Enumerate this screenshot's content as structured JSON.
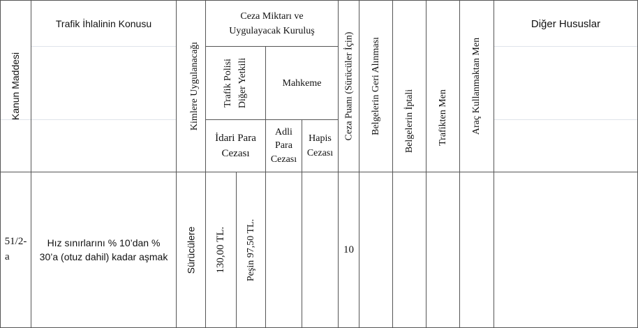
{
  "table": {
    "headers": {
      "kanun_maddesi": "Kanun Maddesi",
      "trafik_ihlali": "Trafik İhlalinin Konusu",
      "kimlere": "Kimlere Uygulanacağı",
      "ceza_miktari_line1": "Ceza Miktarı ve",
      "ceza_miktari_line2": "Uygulayacak Kuruluş",
      "trafik_polisi_line1": "Trafik Polisi",
      "trafik_polisi_line2": "Diğer Yetkili",
      "mahkeme": "Mahkeme",
      "idari_para_line1": "İdari Para",
      "idari_para_line2": "Cezası",
      "adli_para_line1": "Adli",
      "adli_para_line2": "Para",
      "adli_para_line3": "Cezası",
      "hapis_line1": "Hapis",
      "hapis_line2": "Cezası",
      "ceza_puani": "Ceza Puanı (Sürücüler İçin)",
      "belge_geri": "Belgelerin Geri Alınması",
      "belge_iptal": "Belgelerin İptali",
      "trafikten_men": "Trafikten Men",
      "arac_kullanma_men": "Araç Kullanmaktan Men",
      "diger_hususlar": "Diğer Hususlar"
    },
    "row": {
      "madde_line1": "51/2-",
      "madde_line2": "a",
      "konu_line1": "Hız sınırlarını % 10’dan %",
      "konu_line2": "30’a (otuz dahil) kadar aşmak",
      "kimlere": "Sürücülere",
      "idari_para": "130,00 TL.",
      "pesin": "Peşin  97,50 TL.",
      "ceza_puani": "10"
    }
  }
}
